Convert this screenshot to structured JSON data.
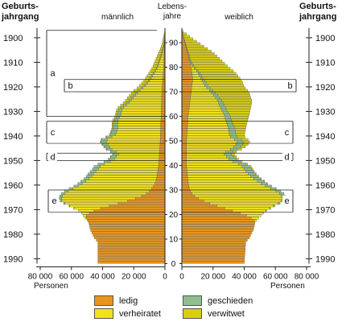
{
  "labels": {
    "left_axis_title": [
      "Geburts-",
      "jahrgang"
    ],
    "right_axis_title": [
      "Geburts-",
      "jahrgang"
    ],
    "center_axis_title": [
      "Lebens-",
      "jahre"
    ],
    "male": "männlich",
    "female": "weiblich",
    "persons_left": "Personen",
    "persons_right": "Personen"
  },
  "colors": {
    "ledig": "#e8951e",
    "verheiratet": "#f2e21a",
    "geschieden": "#8fbf8c",
    "verwitwet": "#d8cf10",
    "outline": "#555555"
  },
  "legend": [
    {
      "label": "ledig",
      "color_key": "ledig"
    },
    {
      "label": "geschieden",
      "color_key": "geschieden"
    },
    {
      "label": "verheiratet",
      "color_key": "verheiratet"
    },
    {
      "label": "verwitwet",
      "color_key": "verwitwet"
    }
  ],
  "chart_data": {
    "type": "bar",
    "subtype": "population-pyramid",
    "stack_order": [
      "ledig",
      "verheiratet",
      "geschieden",
      "verwitwet"
    ],
    "age_range": [
      0,
      95
    ],
    "age_ticks": [
      0,
      10,
      20,
      30,
      40,
      50,
      60,
      70,
      80,
      90
    ],
    "birthyear_ticks": [
      "1900",
      "1910",
      "1920",
      "1930",
      "1940",
      "1950",
      "1960",
      "1970",
      "1980",
      "1990"
    ],
    "xlim": [
      0,
      80000
    ],
    "x_ticks_male": [
      "80 000",
      "60 000",
      "40 000",
      "20 000",
      "0"
    ],
    "x_ticks_female": [
      "0",
      "20 000",
      "40 000",
      "60 000",
      "80 000"
    ],
    "annotations": [
      {
        "label": "a",
        "side": "male",
        "ages": [
          60,
          95
        ]
      },
      {
        "label": "b",
        "side": "both",
        "ages": [
          70,
          75
        ]
      },
      {
        "label": "c",
        "side": "both",
        "ages": [
          49,
          58
        ]
      },
      {
        "label": "d",
        "side": "both",
        "ages": [
          42,
          45
        ]
      },
      {
        "label": "e",
        "side": "both",
        "ages": [
          21,
          30
        ]
      }
    ],
    "series_keypoints": {
      "male": {
        "total": [
          [
            0,
            43000
          ],
          [
            9,
            43000
          ],
          [
            10,
            45000
          ],
          [
            14,
            48000
          ],
          [
            17,
            49000
          ],
          [
            19,
            52000
          ],
          [
            21,
            54000
          ],
          [
            24,
            63000
          ],
          [
            25,
            67000
          ],
          [
            27,
            68000
          ],
          [
            29,
            66000
          ],
          [
            30,
            63000
          ],
          [
            32,
            57000
          ],
          [
            35,
            51000
          ],
          [
            37,
            49000
          ],
          [
            38,
            47000
          ],
          [
            40,
            45000
          ],
          [
            42,
            37000
          ],
          [
            45,
            33000
          ],
          [
            46,
            37000
          ],
          [
            48,
            40000
          ],
          [
            50,
            42000
          ],
          [
            51,
            40000
          ],
          [
            52,
            36000
          ],
          [
            55,
            34000
          ],
          [
            58,
            34000
          ],
          [
            60,
            32000
          ],
          [
            63,
            31000
          ],
          [
            66,
            26000
          ],
          [
            70,
            21000
          ],
          [
            72,
            17000
          ],
          [
            75,
            13000
          ],
          [
            78,
            10000
          ],
          [
            80,
            8000
          ],
          [
            83,
            6000
          ],
          [
            86,
            4000
          ],
          [
            89,
            2000
          ],
          [
            92,
            1000
          ],
          [
            95,
            0
          ]
        ],
        "ledig": [
          [
            0,
            43000
          ],
          [
            9,
            43000
          ],
          [
            10,
            45000
          ],
          [
            14,
            48000
          ],
          [
            17,
            49000
          ],
          [
            19,
            51000
          ],
          [
            20,
            50000
          ],
          [
            22,
            44000
          ],
          [
            24,
            33000
          ],
          [
            26,
            21000
          ],
          [
            28,
            13000
          ],
          [
            30,
            9000
          ],
          [
            33,
            6000
          ],
          [
            36,
            5000
          ],
          [
            40,
            4000
          ],
          [
            50,
            3000
          ],
          [
            60,
            2500
          ],
          [
            70,
            2000
          ],
          [
            80,
            800
          ],
          [
            90,
            300
          ],
          [
            95,
            0
          ]
        ],
        "geschieden": [
          [
            0,
            0
          ],
          [
            22,
            0
          ],
          [
            25,
            1000
          ],
          [
            30,
            2500
          ],
          [
            35,
            3500
          ],
          [
            40,
            4000
          ],
          [
            45,
            3500
          ],
          [
            50,
            3500
          ],
          [
            55,
            3000
          ],
          [
            60,
            2200
          ],
          [
            65,
            1800
          ],
          [
            70,
            1200
          ],
          [
            75,
            800
          ],
          [
            80,
            500
          ],
          [
            90,
            200
          ],
          [
            95,
            0
          ]
        ],
        "verwitwet": [
          [
            0,
            0
          ],
          [
            40,
            0
          ],
          [
            45,
            300
          ],
          [
            50,
            500
          ],
          [
            55,
            800
          ],
          [
            60,
            1200
          ],
          [
            65,
            2000
          ],
          [
            70,
            2800
          ],
          [
            75,
            3000
          ],
          [
            80,
            2800
          ],
          [
            85,
            2200
          ],
          [
            90,
            1100
          ],
          [
            95,
            0
          ]
        ]
      },
      "female": {
        "total": [
          [
            0,
            40000
          ],
          [
            9,
            41000
          ],
          [
            10,
            43000
          ],
          [
            14,
            46000
          ],
          [
            17,
            47000
          ],
          [
            19,
            50000
          ],
          [
            21,
            53000
          ],
          [
            24,
            61000
          ],
          [
            25,
            65000
          ],
          [
            27,
            67000
          ],
          [
            29,
            65000
          ],
          [
            30,
            62000
          ],
          [
            32,
            56000
          ],
          [
            35,
            50000
          ],
          [
            37,
            47000
          ],
          [
            38,
            46000
          ],
          [
            40,
            44000
          ],
          [
            42,
            37000
          ],
          [
            45,
            33000
          ],
          [
            46,
            37000
          ],
          [
            48,
            42000
          ],
          [
            50,
            44000
          ],
          [
            51,
            41000
          ],
          [
            52,
            40000
          ],
          [
            55,
            41000
          ],
          [
            58,
            42000
          ],
          [
            60,
            43000
          ],
          [
            63,
            44000
          ],
          [
            66,
            45000
          ],
          [
            70,
            43000
          ],
          [
            72,
            40000
          ],
          [
            75,
            38000
          ],
          [
            78,
            34000
          ],
          [
            80,
            30000
          ],
          [
            83,
            25000
          ],
          [
            86,
            20000
          ],
          [
            89,
            13000
          ],
          [
            92,
            6000
          ],
          [
            95,
            0
          ]
        ],
        "ledig": [
          [
            0,
            40000
          ],
          [
            9,
            41000
          ],
          [
            10,
            43000
          ],
          [
            14,
            46000
          ],
          [
            17,
            47000
          ],
          [
            18,
            46000
          ],
          [
            20,
            40000
          ],
          [
            22,
            30000
          ],
          [
            24,
            20000
          ],
          [
            26,
            12000
          ],
          [
            28,
            7000
          ],
          [
            30,
            5000
          ],
          [
            33,
            4000
          ],
          [
            40,
            3000
          ],
          [
            50,
            3000
          ],
          [
            60,
            4000
          ],
          [
            70,
            6000
          ],
          [
            75,
            7000
          ],
          [
            80,
            6000
          ],
          [
            85,
            4000
          ],
          [
            90,
            2000
          ],
          [
            95,
            0
          ]
        ],
        "geschieden": [
          [
            0,
            0
          ],
          [
            20,
            0
          ],
          [
            25,
            1500
          ],
          [
            30,
            3500
          ],
          [
            35,
            4500
          ],
          [
            40,
            5000
          ],
          [
            45,
            4500
          ],
          [
            50,
            4500
          ],
          [
            55,
            4000
          ],
          [
            60,
            3500
          ],
          [
            65,
            3000
          ],
          [
            70,
            2500
          ],
          [
            75,
            1500
          ],
          [
            80,
            800
          ],
          [
            90,
            200
          ],
          [
            95,
            0
          ]
        ],
        "verwitwet": [
          [
            0,
            0
          ],
          [
            30,
            0
          ],
          [
            35,
            500
          ],
          [
            40,
            1000
          ],
          [
            45,
            2000
          ],
          [
            50,
            4000
          ],
          [
            55,
            7000
          ],
          [
            60,
            12000
          ],
          [
            65,
            18000
          ],
          [
            70,
            22000
          ],
          [
            75,
            24000
          ],
          [
            80,
            22000
          ],
          [
            85,
            18000
          ],
          [
            90,
            10000
          ],
          [
            95,
            0
          ]
        ]
      }
    }
  }
}
